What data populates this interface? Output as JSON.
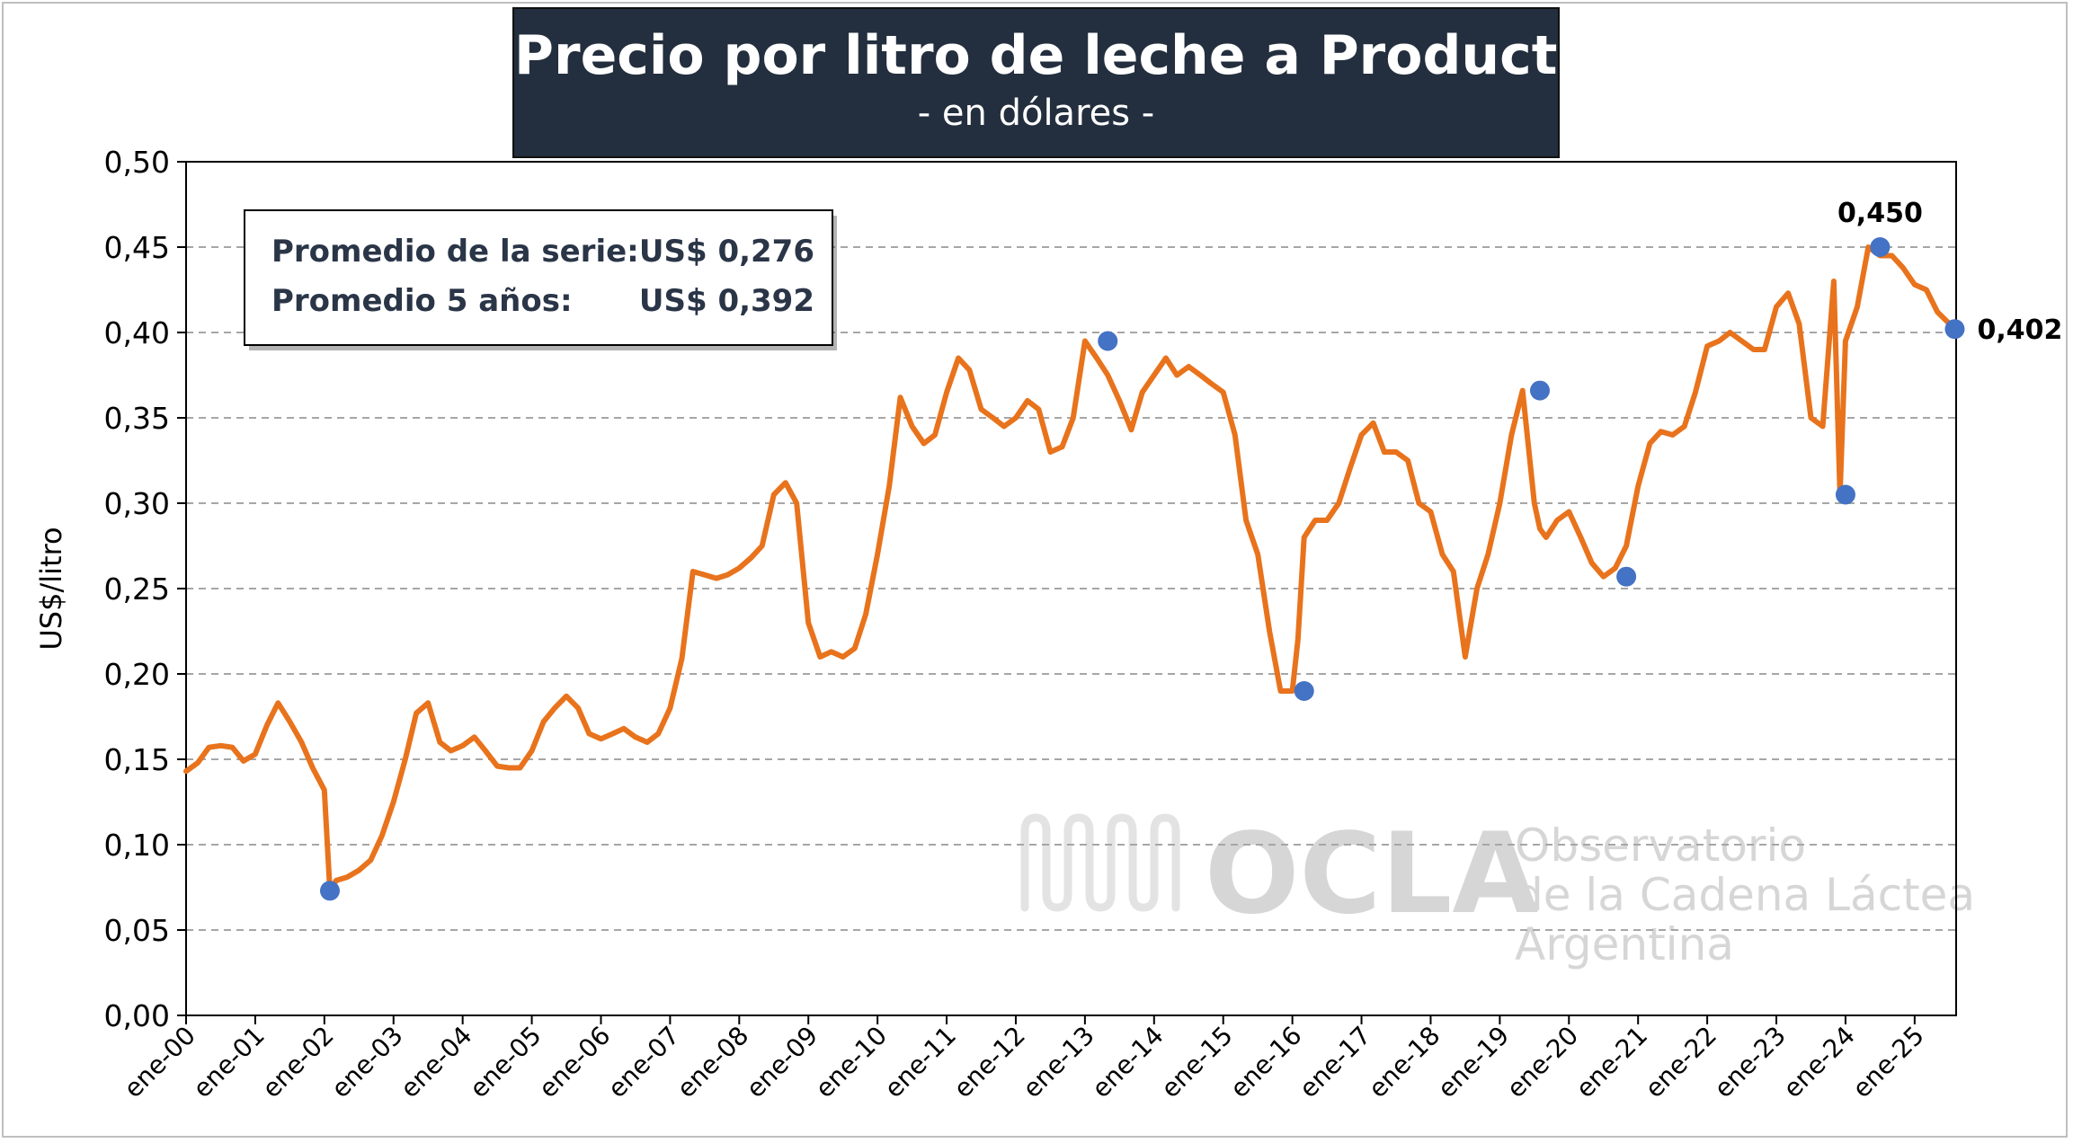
{
  "title": "Precio por litro de leche a Productor",
  "subtitle": "- en dólares -",
  "summary": {
    "line1_label": "Promedio de la serie:",
    "line1_value": "US$ 0,276",
    "line2_label": "Promedio 5 años:",
    "line2_value": "US$ 0,392"
  },
  "watermark": {
    "logo": "OCLA",
    "line1": "Observatorio",
    "line2": "de la Cadena Láctea",
    "line3": "Argentina"
  },
  "colors": {
    "line": "#e8731c",
    "marker": "#4472c4",
    "title_bg": "#232f3e",
    "grid": "#a6a6a6"
  },
  "chart_data": {
    "type": "line",
    "ylabel": "US$/litro",
    "xlabel": "",
    "ylim": [
      0,
      0.5
    ],
    "x_range": [
      2000.0,
      2025.6
    ],
    "yticks": [
      "0,00",
      "0,05",
      "0,10",
      "0,15",
      "0,20",
      "0,25",
      "0,30",
      "0,35",
      "0,40",
      "0,45",
      "0,50"
    ],
    "xticks": [
      "ene-00",
      "ene-01",
      "ene-02",
      "ene-03",
      "ene-04",
      "ene-05",
      "ene-06",
      "ene-07",
      "ene-08",
      "ene-09",
      "ene-10",
      "ene-11",
      "ene-12",
      "ene-13",
      "ene-14",
      "ene-15",
      "ene-16",
      "ene-17",
      "ene-18",
      "ene-19",
      "ene-20",
      "ene-21",
      "ene-22",
      "ene-23",
      "ene-24",
      "ene-25"
    ],
    "grid": "horizontal dashed",
    "series": [
      {
        "x": [
          2000.0,
          2000.17,
          2000.33,
          2000.5,
          2000.67,
          2000.83,
          2001.0,
          2001.17,
          2001.33,
          2001.5,
          2001.67,
          2001.83,
          2002.0,
          2002.08,
          2002.17,
          2002.33,
          2002.5,
          2002.67,
          2002.83,
          2003.0,
          2003.17,
          2003.33,
          2003.5,
          2003.67,
          2003.83,
          2004.0,
          2004.17,
          2004.33,
          2004.5,
          2004.67,
          2004.83,
          2005.0,
          2005.17,
          2005.33,
          2005.5,
          2005.67,
          2005.83,
          2006.0,
          2006.17,
          2006.33,
          2006.5,
          2006.67,
          2006.83,
          2007.0,
          2007.17,
          2007.33,
          2007.5,
          2007.67,
          2007.83,
          2008.0,
          2008.17,
          2008.33,
          2008.5,
          2008.67,
          2008.83,
          2009.0,
          2009.17,
          2009.33,
          2009.5,
          2009.67,
          2009.83,
          2010.0,
          2010.17,
          2010.33,
          2010.5,
          2010.67,
          2010.83,
          2011.0,
          2011.17,
          2011.33,
          2011.5,
          2011.67,
          2011.83,
          2012.0,
          2012.17,
          2012.33,
          2012.5,
          2012.67,
          2012.83,
          2013.0,
          2013.17,
          2013.33,
          2013.5,
          2013.67,
          2013.83,
          2014.0,
          2014.17,
          2014.33,
          2014.5,
          2014.67,
          2014.83,
          2015.0,
          2015.17,
          2015.33,
          2015.5,
          2015.67,
          2015.83,
          2016.0,
          2016.08,
          2016.17,
          2016.33,
          2016.5,
          2016.67,
          2016.83,
          2017.0,
          2017.17,
          2017.33,
          2017.5,
          2017.67,
          2017.83,
          2018.0,
          2018.17,
          2018.33,
          2018.5,
          2018.67,
          2018.83,
          2019.0,
          2019.17,
          2019.33,
          2019.5,
          2019.58,
          2019.67,
          2019.83,
          2020.0,
          2020.17,
          2020.33,
          2020.5,
          2020.67,
          2020.83,
          2021.0,
          2021.17,
          2021.33,
          2021.5,
          2021.67,
          2021.83,
          2022.0,
          2022.17,
          2022.33,
          2022.5,
          2022.67,
          2022.83,
          2023.0,
          2023.17,
          2023.33,
          2023.5,
          2023.67,
          2023.83,
          2023.92,
          2024.0,
          2024.17,
          2024.33,
          2024.5,
          2024.67,
          2024.83,
          2025.0,
          2025.17,
          2025.33,
          2025.58
        ],
        "y": [
          0.143,
          0.148,
          0.157,
          0.158,
          0.157,
          0.149,
          0.153,
          0.17,
          0.183,
          0.172,
          0.16,
          0.145,
          0.132,
          0.073,
          0.079,
          0.081,
          0.085,
          0.091,
          0.105,
          0.125,
          0.15,
          0.177,
          0.183,
          0.16,
          0.155,
          0.158,
          0.163,
          0.155,
          0.146,
          0.145,
          0.145,
          0.155,
          0.172,
          0.18,
          0.187,
          0.18,
          0.165,
          0.162,
          0.165,
          0.168,
          0.163,
          0.16,
          0.165,
          0.18,
          0.209,
          0.26,
          0.258,
          0.256,
          0.258,
          0.262,
          0.268,
          0.275,
          0.305,
          0.312,
          0.3,
          0.23,
          0.21,
          0.213,
          0.21,
          0.215,
          0.235,
          0.27,
          0.31,
          0.362,
          0.345,
          0.335,
          0.34,
          0.365,
          0.385,
          0.378,
          0.355,
          0.35,
          0.345,
          0.35,
          0.36,
          0.355,
          0.33,
          0.333,
          0.35,
          0.395,
          0.385,
          0.375,
          0.36,
          0.343,
          0.365,
          0.375,
          0.385,
          0.375,
          0.38,
          0.375,
          0.37,
          0.365,
          0.34,
          0.29,
          0.27,
          0.225,
          0.19,
          0.19,
          0.22,
          0.28,
          0.29,
          0.29,
          0.3,
          0.32,
          0.34,
          0.347,
          0.33,
          0.33,
          0.325,
          0.3,
          0.295,
          0.27,
          0.26,
          0.21,
          0.25,
          0.27,
          0.3,
          0.34,
          0.366,
          0.3,
          0.285,
          0.28,
          0.29,
          0.295,
          0.28,
          0.265,
          0.257,
          0.262,
          0.275,
          0.31,
          0.335,
          0.342,
          0.34,
          0.345,
          0.365,
          0.392,
          0.395,
          0.4,
          0.395,
          0.39,
          0.39,
          0.415,
          0.423,
          0.405,
          0.35,
          0.345,
          0.43,
          0.305,
          0.395,
          0.415,
          0.45,
          0.445,
          0.445,
          0.438,
          0.428,
          0.425,
          0.412,
          0.402
        ]
      }
    ],
    "highlighted_points": [
      {
        "x": 2002.08,
        "y": 0.073
      },
      {
        "x": 2013.33,
        "y": 0.395
      },
      {
        "x": 2016.17,
        "y": 0.19
      },
      {
        "x": 2019.58,
        "y": 0.366
      },
      {
        "x": 2020.83,
        "y": 0.257
      },
      {
        "x": 2024.0,
        "y": 0.305
      },
      {
        "x": 2024.5,
        "y": 0.45
      },
      {
        "x": 2025.58,
        "y": 0.402
      }
    ],
    "annotations": [
      {
        "text": "0,450",
        "x": 2024.5,
        "y": 0.45,
        "position": "above"
      },
      {
        "text": "0,402",
        "x": 2025.58,
        "y": 0.402,
        "position": "right"
      }
    ]
  }
}
